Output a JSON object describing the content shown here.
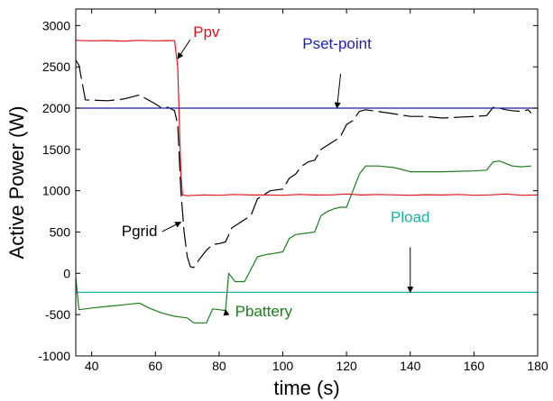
{
  "chart_data": {
    "type": "line",
    "title": "",
    "xlabel": "time (s)",
    "ylabel": "Active Power (W)",
    "xlim": [
      35,
      180
    ],
    "ylim": [
      -1000,
      3200
    ],
    "xticks": [
      40,
      60,
      80,
      100,
      120,
      140,
      160,
      180
    ],
    "yticks": [
      -1000,
      -500,
      0,
      500,
      1000,
      1500,
      2000,
      2500,
      3000
    ],
    "grid": false,
    "legend": "none",
    "series": [
      {
        "name": "Ppv",
        "color": "#e0141e",
        "style": "solid",
        "points": [
          [
            35,
            2820
          ],
          [
            40,
            2815
          ],
          [
            45,
            2818
          ],
          [
            50,
            2812
          ],
          [
            55,
            2820
          ],
          [
            60,
            2815
          ],
          [
            64,
            2818
          ],
          [
            66,
            2816
          ],
          [
            67,
            2500
          ],
          [
            68,
            1200
          ],
          [
            68.5,
            950
          ],
          [
            70,
            940
          ],
          [
            75,
            950
          ],
          [
            80,
            945
          ],
          [
            85,
            955
          ],
          [
            90,
            948
          ],
          [
            95,
            950
          ],
          [
            100,
            945
          ],
          [
            105,
            955
          ],
          [
            110,
            948
          ],
          [
            115,
            950
          ],
          [
            120,
            960
          ],
          [
            125,
            948
          ],
          [
            130,
            955
          ],
          [
            135,
            950
          ],
          [
            140,
            945
          ],
          [
            145,
            952
          ],
          [
            150,
            948
          ],
          [
            155,
            955
          ],
          [
            160,
            945
          ],
          [
            165,
            950
          ],
          [
            170,
            960
          ],
          [
            175,
            945
          ],
          [
            180,
            950
          ]
        ]
      },
      {
        "name": "Pgrid",
        "color": "#000000",
        "style": "dashed",
        "points": [
          [
            35,
            2580
          ],
          [
            36,
            2520
          ],
          [
            38,
            2100
          ],
          [
            45,
            2090
          ],
          [
            50,
            2110
          ],
          [
            55,
            2160
          ],
          [
            60,
            2050
          ],
          [
            62,
            2000
          ],
          [
            64,
            2010
          ],
          [
            66,
            1970
          ],
          [
            67,
            1800
          ],
          [
            68,
            1000
          ],
          [
            69,
            500
          ],
          [
            70,
            200
          ],
          [
            71,
            80
          ],
          [
            72,
            70
          ],
          [
            74,
            180
          ],
          [
            76,
            280
          ],
          [
            78,
            350
          ],
          [
            80,
            360
          ],
          [
            82,
            380
          ],
          [
            84,
            550
          ],
          [
            86,
            600
          ],
          [
            88,
            650
          ],
          [
            90,
            700
          ],
          [
            92,
            900
          ],
          [
            94,
            950
          ],
          [
            96,
            1000
          ],
          [
            100,
            1020
          ],
          [
            102,
            1150
          ],
          [
            104,
            1200
          ],
          [
            106,
            1300
          ],
          [
            108,
            1350
          ],
          [
            110,
            1370
          ],
          [
            112,
            1500
          ],
          [
            114,
            1550
          ],
          [
            116,
            1600
          ],
          [
            118,
            1650
          ],
          [
            120,
            1800
          ],
          [
            122,
            1850
          ],
          [
            124,
            1960
          ],
          [
            126,
            1980
          ],
          [
            130,
            1960
          ],
          [
            135,
            1930
          ],
          [
            140,
            1900
          ],
          [
            145,
            1900
          ],
          [
            150,
            1880
          ],
          [
            155,
            1890
          ],
          [
            160,
            1900
          ],
          [
            164,
            1910
          ],
          [
            166,
            2010
          ],
          [
            168,
            2000
          ],
          [
            170,
            1980
          ],
          [
            172,
            1970
          ],
          [
            175,
            1960
          ],
          [
            177,
            1980
          ],
          [
            178,
            1940
          ]
        ]
      },
      {
        "name": "Pset-point",
        "color": "#1f1fb4",
        "style": "solid",
        "points": [
          [
            35,
            2000
          ],
          [
            180,
            2000
          ]
        ]
      },
      {
        "name": "Pload",
        "color": "#19b4a5",
        "style": "solid",
        "points": [
          [
            35,
            -230
          ],
          [
            180,
            -230
          ]
        ]
      },
      {
        "name": "Pbattery",
        "color": "#1a7f1a",
        "style": "solid",
        "points": [
          [
            35,
            -50
          ],
          [
            36,
            -440
          ],
          [
            40,
            -420
          ],
          [
            45,
            -400
          ],
          [
            50,
            -380
          ],
          [
            55,
            -360
          ],
          [
            58,
            -420
          ],
          [
            62,
            -480
          ],
          [
            66,
            -520
          ],
          [
            70,
            -540
          ],
          [
            72,
            -600
          ],
          [
            76,
            -600
          ],
          [
            78,
            -430
          ],
          [
            80,
            -440
          ],
          [
            82,
            -450
          ],
          [
            83,
            0
          ],
          [
            85,
            -100
          ],
          [
            88,
            -100
          ],
          [
            90,
            50
          ],
          [
            92,
            200
          ],
          [
            95,
            230
          ],
          [
            97,
            240
          ],
          [
            100,
            260
          ],
          [
            102,
            420
          ],
          [
            104,
            470
          ],
          [
            106,
            480
          ],
          [
            110,
            500
          ],
          [
            112,
            700
          ],
          [
            114,
            750
          ],
          [
            116,
            780
          ],
          [
            118,
            800
          ],
          [
            120,
            800
          ],
          [
            122,
            1000
          ],
          [
            124,
            1200
          ],
          [
            126,
            1300
          ],
          [
            130,
            1300
          ],
          [
            135,
            1280
          ],
          [
            140,
            1230
          ],
          [
            150,
            1230
          ],
          [
            160,
            1240
          ],
          [
            164,
            1250
          ],
          [
            166,
            1350
          ],
          [
            168,
            1360
          ],
          [
            172,
            1300
          ],
          [
            175,
            1290
          ],
          [
            178,
            1300
          ]
        ]
      }
    ],
    "annotations": [
      {
        "text": "Ppv",
        "color": "#e0141e",
        "x": 76,
        "y": 2860,
        "point_x": 67,
        "point_y": 2600
      },
      {
        "text": "Pset-point",
        "color": "#1f1fb4",
        "x": 117,
        "y": 2720,
        "point_x": 117,
        "point_y": 2000
      },
      {
        "text": "Pgrid",
        "color": "#000000",
        "x": 55,
        "y": 450,
        "point_x": 68,
        "point_y": 620
      },
      {
        "text": "Pload",
        "color": "#19b4a5",
        "x": 140,
        "y": 620,
        "point_x": 140,
        "point_y": -230
      },
      {
        "text": "Pbattery",
        "color": "#1a7f1a",
        "x": 94,
        "y": -520,
        "point_x": 82,
        "point_y": -440
      }
    ]
  }
}
